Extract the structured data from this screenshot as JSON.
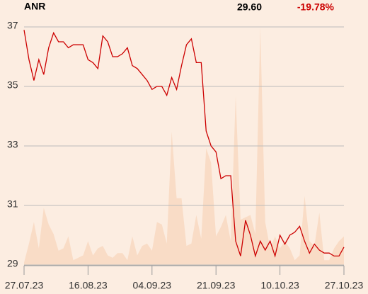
{
  "chart_data": {
    "type": "line",
    "title": "ANR",
    "price": "29.60",
    "change": "-19.78%",
    "change_color": "#cc0000",
    "categories": [
      "27.07.23",
      null,
      null,
      null,
      null,
      null,
      null,
      null,
      null,
      null,
      null,
      null,
      null,
      "16.08.23",
      null,
      null,
      null,
      null,
      null,
      null,
      null,
      null,
      null,
      null,
      null,
      null,
      "04.09.23",
      null,
      null,
      null,
      null,
      null,
      null,
      null,
      null,
      null,
      null,
      null,
      null,
      "21.09.23",
      null,
      null,
      null,
      null,
      null,
      null,
      null,
      null,
      null,
      null,
      null,
      null,
      "10.10.23",
      null,
      null,
      null,
      null,
      null,
      null,
      null,
      null,
      null,
      null,
      null,
      null,
      "27.10.23"
    ],
    "series": [
      {
        "color": "#cc0000",
        "values": [
          36.9,
          35.9,
          35.2,
          35.9,
          35.4,
          36.3,
          36.8,
          36.5,
          36.5,
          36.3,
          36.4,
          36.4,
          36.4,
          35.9,
          35.8,
          35.6,
          36.7,
          36.5,
          36.0,
          36.0,
          36.1,
          36.3,
          35.7,
          35.6,
          35.4,
          35.2,
          34.9,
          35.0,
          35.0,
          34.7,
          35.3,
          34.9,
          35.7,
          36.4,
          36.6,
          35.8,
          35.8,
          33.5,
          33.0,
          32.8,
          31.9,
          32.0,
          32.0,
          29.8,
          29.3,
          30.5,
          30.0,
          29.3,
          29.8,
          29.5,
          29.8,
          29.3,
          30.0,
          29.7,
          30.0,
          30.1,
          30.3,
          29.8,
          29.4,
          29.7,
          29.5,
          29.4,
          29.4,
          29.3,
          29.3,
          29.6
        ]
      },
      {
        "color": "#f9dcc6",
        "axis": "y2",
        "values": [
          1,
          9,
          18,
          7,
          24,
          17,
          13,
          6,
          7,
          12,
          2,
          3,
          4,
          10,
          4,
          7,
          8,
          4,
          3,
          5,
          5,
          2,
          12,
          4,
          8,
          9,
          6,
          18,
          17,
          9,
          56,
          28,
          28,
          8,
          9,
          21,
          11,
          49,
          43,
          12,
          16,
          21,
          10,
          71,
          19,
          20,
          21,
          13,
          100,
          18,
          7,
          12,
          7,
          10,
          7,
          2,
          4,
          29,
          10,
          8,
          22,
          2,
          2,
          7,
          10,
          12
        ]
      }
    ],
    "ylim": [
      29,
      37
    ],
    "yticks": [
      29,
      31,
      33,
      35,
      37
    ],
    "y2lim": [
      0,
      100
    ],
    "grid": true
  }
}
